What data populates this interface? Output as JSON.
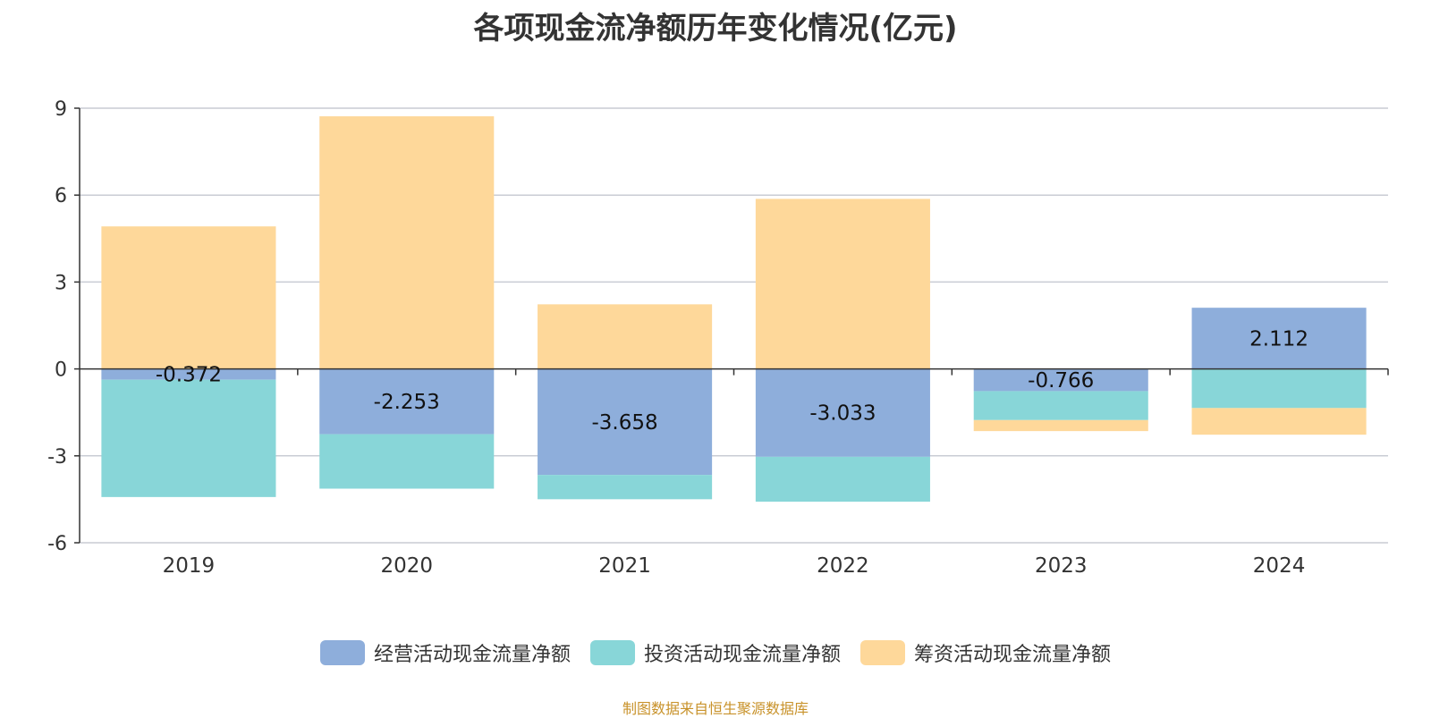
{
  "chart_data": {
    "type": "bar",
    "stacked": true,
    "title": "各项现金流净额历年变化情况(亿元)",
    "categories": [
      "2019",
      "2020",
      "2021",
      "2022",
      "2023",
      "2024"
    ],
    "ylim": [
      -6,
      9
    ],
    "yticks": [
      -6,
      -3,
      0,
      3,
      6,
      9
    ],
    "grid": true,
    "legend_position": "bottom",
    "series": [
      {
        "name": "经营活动现金流量净额",
        "color": "#8eaedb",
        "values": [
          -0.372,
          -2.253,
          -3.658,
          -3.033,
          -0.766,
          2.112
        ],
        "labels": [
          "-0.372",
          "-2.253",
          "-3.658",
          "-3.033",
          "-0.766",
          "2.112"
        ]
      },
      {
        "name": "投资活动现金流量净额",
        "color": "#88d6d8",
        "values": [
          -4.05,
          -1.88,
          -0.84,
          -1.55,
          -1.0,
          -1.35
        ]
      },
      {
        "name": "筹资活动现金流量净额",
        "color": "#fed89a",
        "values": [
          4.92,
          8.72,
          2.23,
          5.87,
          -0.38,
          -0.92
        ]
      }
    ]
  },
  "source": "制图数据来自恒生聚源数据库"
}
